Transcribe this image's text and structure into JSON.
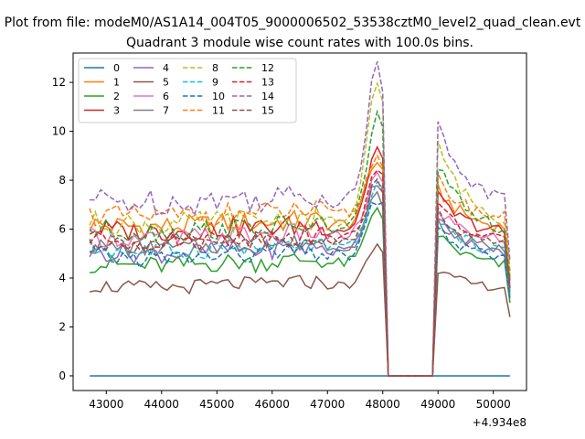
{
  "figure_title": "Plot from file: modeM0/AS1A14_004T05_9000006502_53538cztM0_level2_quad_clean.evt",
  "chart_data": {
    "type": "line",
    "title": "Quadrant 3 module wise count rates with 100.0s bins.",
    "xlabel": "",
    "ylabel": "",
    "x_offset_label": "+4.934e8",
    "xlim": [
      42400,
      50600
    ],
    "ylim": [
      -0.6,
      13.2
    ],
    "xticks": [
      43000,
      44000,
      45000,
      46000,
      47000,
      48000,
      49000,
      50000
    ],
    "xtick_labels": [
      "43000",
      "44000",
      "45000",
      "46000",
      "47000",
      "48000",
      "49000",
      "50000"
    ],
    "yticks": [
      0,
      2,
      4,
      6,
      8,
      10,
      12
    ],
    "ytick_labels": [
      "0",
      "2",
      "4",
      "6",
      "8",
      "10",
      "12"
    ],
    "legend_placement": "top-left",
    "legend_columns": 4,
    "grid": false,
    "x_start": 42700,
    "x_step": 100,
    "n_points": 77,
    "gap_interval": [
      48100,
      48900
    ],
    "series": [
      {
        "name": "0",
        "color": "#1f77b4",
        "dash": false,
        "base": 0.0,
        "amp": 0.0,
        "peak": 0.0,
        "post": 0.0
      },
      {
        "name": "1",
        "color": "#ff7f0e",
        "dash": false,
        "base": 6.2,
        "amp": 0.45,
        "peak": 8.8,
        "post": 7.6
      },
      {
        "name": "2",
        "color": "#2ca02c",
        "dash": false,
        "base": 4.6,
        "amp": 0.4,
        "peak": 6.9,
        "post": 5.8
      },
      {
        "name": "3",
        "color": "#d62728",
        "dash": false,
        "base": 6.0,
        "amp": 0.45,
        "peak": 9.3,
        "post": 7.3
      },
      {
        "name": "4",
        "color": "#9467bd",
        "dash": false,
        "base": 5.1,
        "amp": 0.4,
        "peak": 8.0,
        "post": 6.4
      },
      {
        "name": "5",
        "color": "#8c564b",
        "dash": false,
        "base": 3.7,
        "amp": 0.3,
        "peak": 5.3,
        "post": 4.3
      },
      {
        "name": "6",
        "color": "#e377c2",
        "dash": false,
        "base": 5.7,
        "amp": 0.4,
        "peak": 8.2,
        "post": 6.8
      },
      {
        "name": "7",
        "color": "#7f7f7f",
        "dash": false,
        "base": 5.3,
        "amp": 0.35,
        "peak": 7.4,
        "post": 6.3
      },
      {
        "name": "8",
        "color": "#bcbd22",
        "dash": true,
        "base": 6.3,
        "amp": 0.45,
        "peak": 11.8,
        "post": 9.5
      },
      {
        "name": "9",
        "color": "#17becf",
        "dash": true,
        "base": 5.2,
        "amp": 0.4,
        "peak": 7.8,
        "post": 6.4
      },
      {
        "name": "10",
        "color": "#1f77b4",
        "dash": true,
        "base": 4.9,
        "amp": 0.4,
        "peak": 7.2,
        "post": 6.0
      },
      {
        "name": "11",
        "color": "#ff7f0e",
        "dash": true,
        "base": 6.6,
        "amp": 0.45,
        "peak": 9.0,
        "post": 8.0
      },
      {
        "name": "12",
        "color": "#2ca02c",
        "dash": true,
        "base": 6.0,
        "amp": 0.45,
        "peak": 10.7,
        "post": 8.6
      },
      {
        "name": "13",
        "color": "#d62728",
        "dash": true,
        "base": 5.6,
        "amp": 0.4,
        "peak": 8.6,
        "post": 7.0
      },
      {
        "name": "14",
        "color": "#9467bd",
        "dash": true,
        "base": 7.2,
        "amp": 0.55,
        "peak": 12.6,
        "post": 10.2
      },
      {
        "name": "15",
        "color": "#8c564b",
        "dash": true,
        "base": 5.5,
        "amp": 0.4,
        "peak": 8.0,
        "post": 6.7
      }
    ]
  }
}
